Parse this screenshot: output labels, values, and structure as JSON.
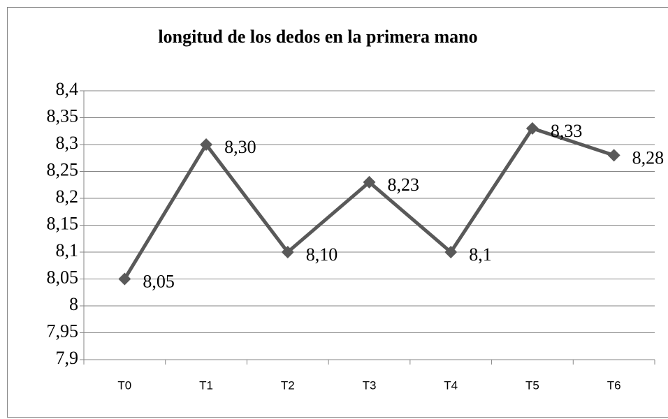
{
  "chart_data": {
    "type": "line",
    "title": "longitud de los dedos en la primera mano",
    "categories": [
      "T0",
      "T1",
      "T2",
      "T3",
      "T4",
      "T5",
      "T6"
    ],
    "values": [
      8.05,
      8.3,
      8.1,
      8.23,
      8.1,
      8.33,
      8.28
    ],
    "value_labels": [
      "8,05",
      "8,30",
      "8,10",
      "8,23",
      "8,1",
      "8,33",
      "8,28"
    ],
    "color": "#595959",
    "ylim": [
      7.9,
      8.4
    ],
    "yticks": [
      {
        "value": 7.9,
        "label": "7,9"
      },
      {
        "value": 7.95,
        "label": "7,95"
      },
      8,
      {
        "value": 8.05,
        "label": "8,05"
      },
      {
        "value": 8.1,
        "label": "8,1"
      },
      {
        "value": 8.15,
        "label": "8,15"
      },
      {
        "value": 8.2,
        "label": "8,2"
      },
      {
        "value": 8.25,
        "label": "8,25"
      },
      {
        "value": 8.3,
        "label": "8,3"
      },
      {
        "value": 8.35,
        "label": "8,35"
      },
      {
        "value": 8.4,
        "label": "8,4"
      }
    ],
    "grid": true
  }
}
